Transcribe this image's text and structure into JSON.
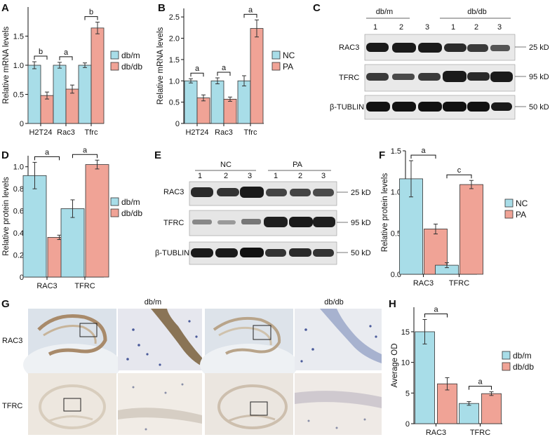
{
  "panels": {
    "A": {
      "letter": "A"
    },
    "B": {
      "letter": "B"
    },
    "C": {
      "letter": "C",
      "group1": "db/m",
      "group2": "db/db",
      "lanes": [
        "1",
        "2",
        "3",
        "1",
        "2",
        "3"
      ],
      "bands": [
        "RAC3",
        "TFRC",
        "β-TUBLIN"
      ],
      "sizes": [
        "25 kD",
        "95 kD",
        "50 kD"
      ]
    },
    "D": {
      "letter": "D"
    },
    "E": {
      "letter": "E",
      "group1": "NC",
      "group2": "PA",
      "lanes": [
        "1",
        "2",
        "3",
        "1",
        "2",
        "3"
      ],
      "bands": [
        "RAC3",
        "TFRC",
        "β-TUBLIN"
      ],
      "sizes": [
        "25 kD",
        "95 kD",
        "50 kD"
      ]
    },
    "F": {
      "letter": "F"
    },
    "G": {
      "letter": "G",
      "col1": "db/m",
      "col2": "db/db",
      "row1": "RAC3",
      "row2": "TFRC"
    },
    "H": {
      "letter": "H"
    }
  },
  "colors": {
    "blue": "#a8dde8",
    "red": "#f0a396",
    "outline": "#333333",
    "err": "#333333"
  },
  "chart_data": [
    {
      "id": "A",
      "type": "bar",
      "ylabel": "Relative mRNA levels",
      "categories": [
        "H2T24",
        "Rac3",
        "Tfrc"
      ],
      "ylim": [
        0,
        2.0
      ],
      "yticks": [
        "0",
        "0.5",
        "1.0",
        "1.5"
      ],
      "series": [
        {
          "name": "db/m",
          "values": [
            1.0,
            1.0,
            1.0
          ],
          "errors": [
            0.06,
            0.05,
            0.04
          ]
        },
        {
          "name": "db/db",
          "values": [
            0.48,
            0.59,
            1.64
          ],
          "errors": [
            0.06,
            0.07,
            0.1
          ]
        }
      ],
      "significance": [
        "b",
        "a",
        "b"
      ],
      "legend": [
        "db/m",
        "db/db"
      ]
    },
    {
      "id": "B",
      "type": "bar",
      "ylabel": "Relative mRNA levels",
      "categories": [
        "H2T24",
        "Rac3",
        "Tfrc"
      ],
      "ylim": [
        0,
        2.7
      ],
      "yticks": [
        "0",
        "0.5",
        "1.0",
        "1.5",
        "2.0",
        "2.5"
      ],
      "series": [
        {
          "name": "NC",
          "values": [
            1.0,
            1.0,
            1.0
          ],
          "errors": [
            0.05,
            0.07,
            0.12
          ]
        },
        {
          "name": "PA",
          "values": [
            0.6,
            0.57,
            2.23
          ],
          "errors": [
            0.07,
            0.05,
            0.2
          ]
        }
      ],
      "significance": [
        "a",
        "a",
        "a"
      ],
      "legend": [
        "NC",
        "PA"
      ]
    },
    {
      "id": "D",
      "type": "bar",
      "ylabel": "Relative protein levels",
      "categories": [
        "RAC3",
        "TFRC"
      ],
      "ylim": [
        0,
        1.1
      ],
      "yticks": [
        "0",
        "0.2",
        "0.4",
        "0.6",
        "0.8",
        "1.0"
      ],
      "series": [
        {
          "name": "db/m",
          "values": [
            0.92,
            0.62
          ],
          "errors": [
            0.12,
            0.08
          ]
        },
        {
          "name": "db/db",
          "values": [
            0.36,
            1.02
          ],
          "errors": [
            0.02,
            0.04
          ]
        }
      ],
      "significance": [
        "a",
        "a"
      ],
      "legend": [
        "db/m",
        "db/db"
      ]
    },
    {
      "id": "F",
      "type": "bar",
      "ylabel": "Relative protein levels",
      "categories": [
        "RAC3",
        "TFRC"
      ],
      "ylim": [
        0,
        1.5
      ],
      "yticks": [
        "0.0",
        "0.5",
        "1.0",
        "1.5"
      ],
      "series": [
        {
          "name": "NC",
          "values": [
            1.16,
            0.11
          ],
          "errors": [
            0.22,
            0.03
          ]
        },
        {
          "name": "PA",
          "values": [
            0.55,
            1.09
          ],
          "errors": [
            0.06,
            0.05
          ]
        }
      ],
      "significance": [
        "a",
        "c"
      ],
      "legend": [
        "NC",
        "PA"
      ]
    },
    {
      "id": "H",
      "type": "bar",
      "ylabel": "Average OD",
      "categories": [
        "RAC3",
        "TFRC"
      ],
      "ylim": [
        0,
        19
      ],
      "yticks": [
        "0",
        "5",
        "10",
        "15"
      ],
      "series": [
        {
          "name": "db/m",
          "values": [
            15.0,
            3.3
          ],
          "errors": [
            2.0,
            0.3
          ]
        },
        {
          "name": "db/db",
          "values": [
            6.5,
            4.9
          ],
          "errors": [
            1.0,
            0.3
          ]
        }
      ],
      "significance": [
        "a",
        "a"
      ],
      "legend": [
        "db/m",
        "db/db"
      ]
    }
  ]
}
